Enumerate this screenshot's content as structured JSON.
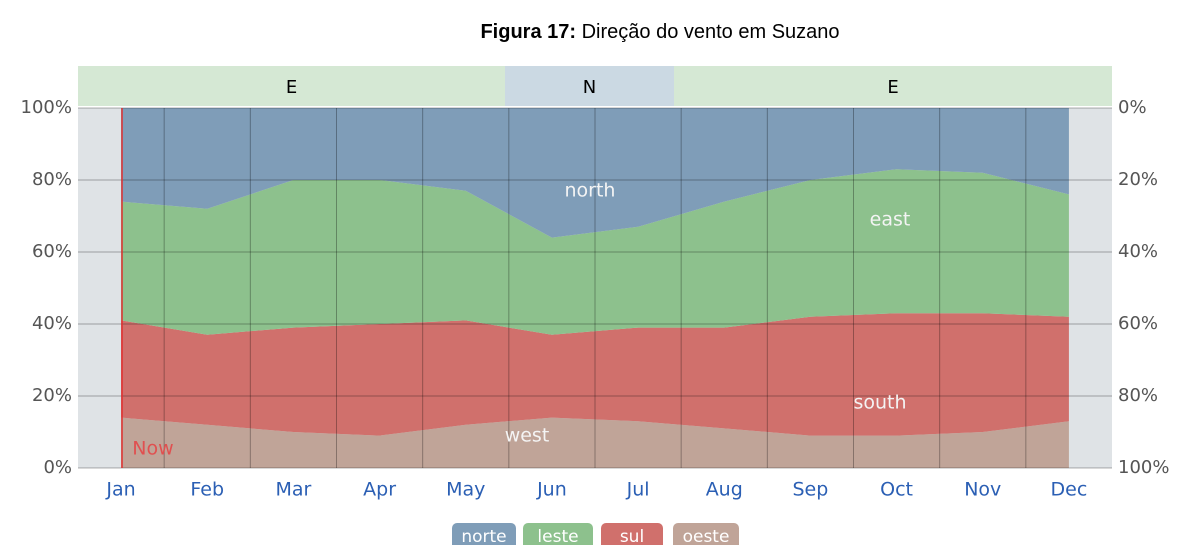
{
  "chart_data": {
    "type": "stacked_area",
    "figure_label": "Figura 17:",
    "title": "Direção do vento em Suzano",
    "bands": [
      "E",
      "N",
      "E"
    ],
    "categories": [
      "Jan",
      "Feb",
      "Mar",
      "Apr",
      "May",
      "Jun",
      "Jul",
      "Aug",
      "Sep",
      "Oct",
      "Nov",
      "Dec"
    ],
    "series": [
      {
        "name": "norte",
        "color": "#7f9db8",
        "values": [
          26,
          28,
          20,
          20,
          23,
          36,
          33,
          26,
          20,
          17,
          18,
          24
        ]
      },
      {
        "name": "leste",
        "color": "#8dc18d",
        "values": [
          33,
          35,
          41,
          40,
          36,
          27,
          28,
          35,
          38,
          40,
          39,
          34
        ]
      },
      {
        "name": "sul",
        "color": "#d0706c",
        "values": [
          27,
          25,
          29,
          31,
          29,
          23,
          26,
          28,
          33,
          34,
          33,
          29
        ]
      },
      {
        "name": "oeste",
        "color": "#c0a498",
        "values": [
          14,
          12,
          10,
          9,
          12,
          14,
          13,
          11,
          9,
          9,
          10,
          13
        ]
      }
    ],
    "annotations": [
      "north",
      "east",
      "south",
      "west",
      "Now"
    ],
    "ylim": [
      0,
      100
    ],
    "yticks": [
      {
        "value": 0,
        "label": "0%"
      },
      {
        "value": 20,
        "label": "20%"
      },
      {
        "value": 40,
        "label": "40%"
      },
      {
        "value": 60,
        "label": "60%"
      },
      {
        "value": 80,
        "label": "80%"
      },
      {
        "value": 100,
        "label": "100%"
      }
    ],
    "y2lim": [
      100,
      0
    ],
    "y2ticks": [
      {
        "value": 0,
        "label": "0%"
      },
      {
        "value": 20,
        "label": "20%"
      },
      {
        "value": 40,
        "label": "40%"
      },
      {
        "value": 60,
        "label": "60%"
      },
      {
        "value": 80,
        "label": "80%"
      },
      {
        "value": 100,
        "label": "100%"
      }
    ],
    "grid": true
  }
}
